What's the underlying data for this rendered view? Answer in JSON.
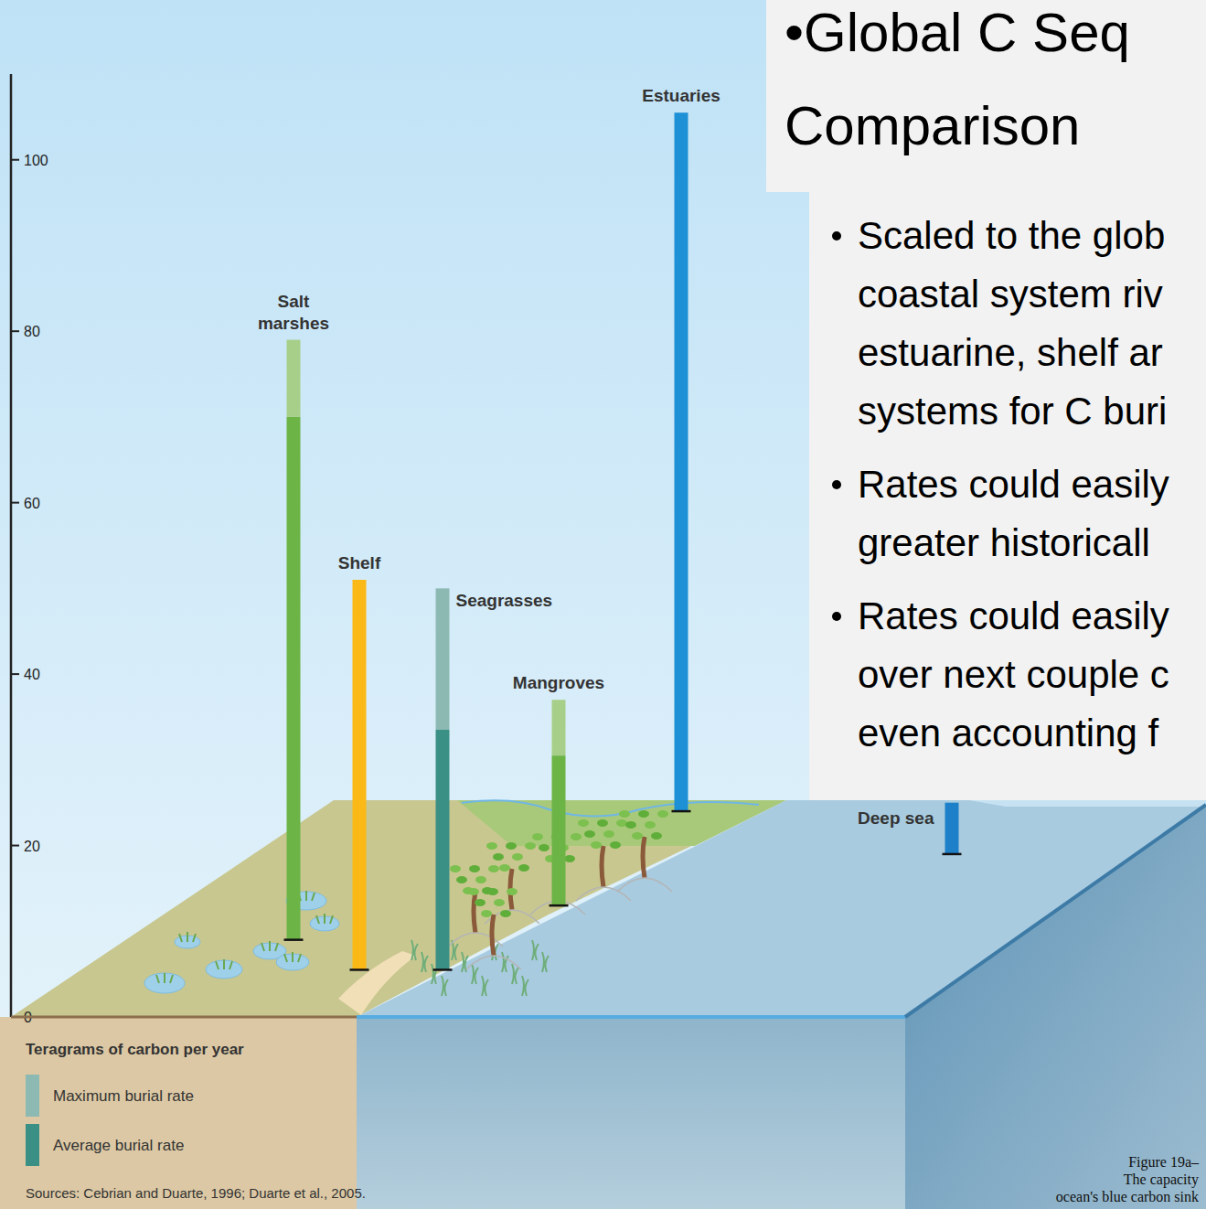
{
  "chart_data": {
    "type": "range_bar",
    "y_label": "Teragrams of carbon per year",
    "categories": [
      "Salt marshes",
      "Shelf",
      "Seagrasses",
      "Mangroves",
      "Estuaries",
      "Deep sea"
    ],
    "base": [
      9,
      5.5,
      5.5,
      13,
      24,
      19
    ],
    "series": [
      {
        "name": "Average burial rate",
        "color": "#3b9086",
        "colors": [
          "#6db447",
          "#fbb917",
          "#3b9086",
          "#6db447",
          "#1e90d6",
          "#1e80c8"
        ],
        "values": [
          70,
          51,
          33.5,
          30.5,
          105.5,
          25
        ]
      },
      {
        "name": "Maximum burial rate",
        "color": "#8db9b3",
        "colors": [
          "#a7cf8a",
          null,
          "#8db9b3",
          "#a7cf8a",
          null,
          null
        ],
        "values": [
          79,
          null,
          50,
          37,
          null,
          null
        ]
      }
    ],
    "ylim": [
      0,
      110
    ],
    "yticks": [
      0,
      20,
      40,
      60,
      80,
      100
    ],
    "legend": "bottom-left",
    "source": "Sources: Cebrian and Duarte, 1996; Duarte et al., 2005."
  },
  "slide": {
    "title": [
      "•Global C Seq",
      "Comparison"
    ],
    "bullets": [
      [
        "Scaled to the glob",
        "coastal system riv",
        "estuarine, shelf ar",
        "systems for C buri"
      ],
      [
        "Rates could easily",
        "greater historicall"
      ],
      [
        "Rates could easily",
        "over next couple c",
        "even accounting f"
      ]
    ],
    "caption": [
      "Figure 19a–",
      "The capacity",
      "ocean's blue carbon sink"
    ]
  }
}
